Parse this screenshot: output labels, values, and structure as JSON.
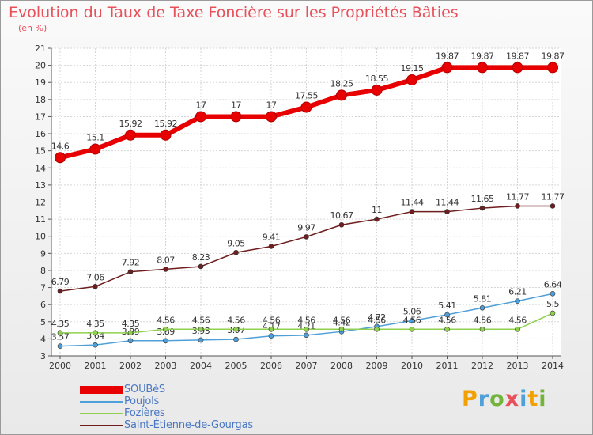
{
  "title": "Evolution du Taux de Taxe Foncière sur les Propriétés Bâties",
  "unit_label": "(en %)",
  "logo": {
    "text": "Proxiti",
    "letters": [
      {
        "ch": "P",
        "color": "#f2a000"
      },
      {
        "ch": "r",
        "color": "#4f9fd8"
      },
      {
        "ch": "o",
        "color": "#73b43b"
      },
      {
        "ch": "x",
        "color": "#e8505a"
      },
      {
        "ch": "i",
        "color": "#4f9fd8"
      },
      {
        "ch": "t",
        "color": "#f2a000"
      },
      {
        "ch": "i",
        "color": "#73b43b"
      }
    ]
  },
  "chart_data": {
    "type": "line",
    "x": [
      "2000",
      "2001",
      "2002",
      "2003",
      "2004",
      "2005",
      "2006",
      "2007",
      "2008",
      "2009",
      "2010",
      "2011",
      "2012",
      "2013",
      "2014"
    ],
    "ylim": [
      3,
      21
    ],
    "yticks": [
      3,
      4,
      5,
      6,
      7,
      8,
      9,
      10,
      11,
      12,
      13,
      14,
      15,
      16,
      17,
      18,
      19,
      20,
      21
    ],
    "grid": true,
    "legend_position": "bottom-left",
    "series": [
      {
        "name": "SOUBèS",
        "color": "#e80000",
        "values": [
          14.6,
          15.1,
          15.92,
          15.92,
          17,
          17,
          17,
          17.55,
          18.25,
          18.55,
          19.15,
          19.87,
          19.87,
          19.87,
          19.87
        ],
        "labels": [
          "14.6",
          "15.1",
          "15.92",
          "15.92",
          "17",
          "17",
          "17",
          "17.55",
          "18.25",
          "18.55",
          "19.15",
          "19.87",
          "19.87",
          "19.87",
          "19.87"
        ]
      },
      {
        "name": "Poujols",
        "color": "#4f9fd8",
        "values": [
          3.57,
          3.64,
          3.89,
          3.89,
          3.93,
          3.97,
          4.17,
          4.21,
          4.42,
          4.72,
          5.06,
          5.41,
          5.81,
          6.21,
          6.64
        ],
        "labels": [
          "3.57",
          "3.64",
          "3.89",
          "3.89",
          "3.93",
          "3.97",
          "4.17",
          "4.21",
          "4.42",
          "4.72",
          "5.06",
          "5.41",
          "5.81",
          "6.21",
          "6.64"
        ]
      },
      {
        "name": "Fozières",
        "color": "#8fd14f",
        "values": [
          4.35,
          4.35,
          4.35,
          4.56,
          4.56,
          4.56,
          4.56,
          4.56,
          4.56,
          4.56,
          4.56,
          4.56,
          4.56,
          4.56,
          5.5
        ],
        "labels": [
          "4.35",
          "4.35",
          "4.35",
          "4.56",
          "4.56",
          "4.56",
          "4.56",
          "4.56",
          "4.56",
          "4.56",
          "4.56",
          "4.56",
          "4.56",
          "4.56",
          "5.5"
        ]
      },
      {
        "name": "Saint-Étienne-de-Gourgas",
        "color": "#6e1e1e",
        "values": [
          6.79,
          7.06,
          7.92,
          8.07,
          8.23,
          9.05,
          9.41,
          9.97,
          10.67,
          11,
          11.44,
          11.44,
          11.65,
          11.77,
          11.77
        ],
        "labels": [
          "6.79",
          "7.06",
          "7.92",
          "8.07",
          "8.23",
          "9.05",
          "9.41",
          "9.97",
          "10.67",
          "11",
          "11.44",
          "11.44",
          "11.65",
          "11.77",
          "11.77"
        ]
      }
    ]
  }
}
